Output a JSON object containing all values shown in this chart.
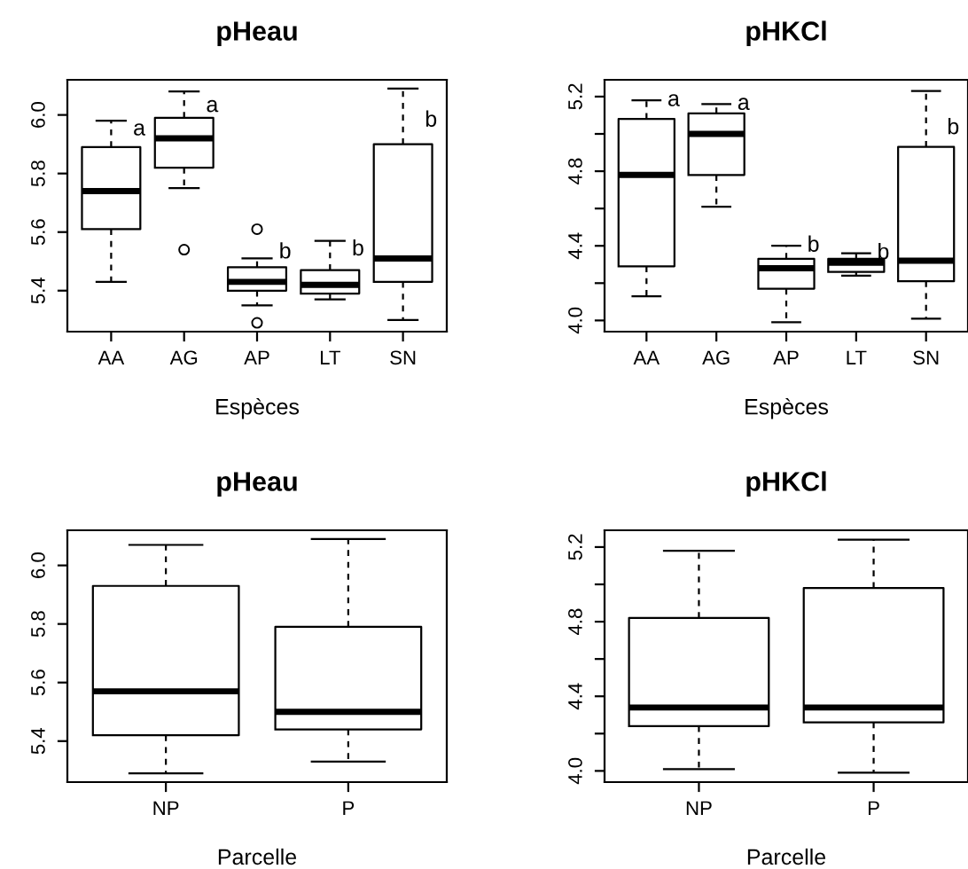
{
  "chart_data": [
    {
      "type": "box",
      "title": "pHeau",
      "xlabel": "Espèces",
      "categories": [
        "AA",
        "AG",
        "AP",
        "LT",
        "SN"
      ],
      "ylim": [
        5.26,
        6.12
      ],
      "yticks": [
        5.4,
        5.6,
        5.8,
        {
          "value": 6.0,
          "label": "6.0"
        }
      ],
      "grid": false,
      "boxes": [
        {
          "low": 5.43,
          "q1": 5.61,
          "median": 5.74,
          "q3": 5.89,
          "high": 5.98
        },
        {
          "low": 5.75,
          "q1": 5.82,
          "median": 5.92,
          "q3": 5.99,
          "high": 6.08,
          "outliers": [
            5.54
          ]
        },
        {
          "low": 5.35,
          "q1": 5.4,
          "median": 5.43,
          "q3": 5.48,
          "high": 5.51,
          "outliers": [
            5.61,
            5.29
          ]
        },
        {
          "low": 5.37,
          "q1": 5.39,
          "median": 5.42,
          "q3": 5.47,
          "high": 5.57
        },
        {
          "low": 5.3,
          "q1": 5.43,
          "median": 5.51,
          "q3": 5.9,
          "high": 6.09
        }
      ],
      "annotations": [
        {
          "text": "a",
          "x": "AA",
          "y": 5.95
        },
        {
          "text": "a",
          "x": "AG",
          "y": 6.03
        },
        {
          "text": "b",
          "x": "AP",
          "y": 5.53
        },
        {
          "text": "b",
          "x": "LT",
          "y": 5.54
        },
        {
          "text": "b",
          "x": "SN",
          "y": 5.98
        }
      ]
    },
    {
      "type": "box",
      "title": "pHKCl",
      "xlabel": "Espèces",
      "categories": [
        "AA",
        "AG",
        "AP",
        "LT",
        "SN"
      ],
      "ylim": [
        3.94,
        5.29
      ],
      "yticks": [
        {
          "value": 4.0,
          "label": "4.0"
        },
        {
          "value": 4.2,
          "label": null
        },
        4.4,
        {
          "value": 4.6,
          "label": null
        },
        4.8,
        {
          "value": 5.0,
          "label": null
        },
        5.2
      ],
      "grid": false,
      "boxes": [
        {
          "low": 4.13,
          "q1": 4.29,
          "median": 4.78,
          "q3": 5.08,
          "high": 5.18
        },
        {
          "low": 4.61,
          "q1": 4.78,
          "median": 5.0,
          "q3": 5.11,
          "high": 5.16
        },
        {
          "low": 3.99,
          "q1": 4.17,
          "median": 4.28,
          "q3": 4.33,
          "high": 4.4
        },
        {
          "low": 4.24,
          "q1": 4.26,
          "median": 4.31,
          "q3": 4.33,
          "high": 4.36
        },
        {
          "low": 4.01,
          "q1": 4.21,
          "median": 4.32,
          "q3": 4.93,
          "high": 5.23
        }
      ],
      "annotations": [
        {
          "text": "a",
          "x": "AA",
          "y": 5.18
        },
        {
          "text": "a",
          "x": "AG",
          "y": 5.16
        },
        {
          "text": "b",
          "x": "AP",
          "y": 4.4
        },
        {
          "text": "b",
          "x": "LT",
          "y": 4.36
        },
        {
          "text": "b",
          "x": "SN",
          "y": 5.03
        }
      ]
    },
    {
      "type": "box",
      "title": "pHeau",
      "xlabel": "Parcelle",
      "categories": [
        "NP",
        "P"
      ],
      "ylim": [
        5.26,
        6.12
      ],
      "yticks": [
        5.4,
        5.6,
        5.8,
        {
          "value": 6.0,
          "label": "6.0"
        }
      ],
      "grid": false,
      "boxes": [
        {
          "low": 5.29,
          "q1": 5.42,
          "median": 5.57,
          "q3": 5.93,
          "high": 6.07
        },
        {
          "low": 5.33,
          "q1": 5.44,
          "median": 5.5,
          "q3": 5.79,
          "high": 6.09
        }
      ]
    },
    {
      "type": "box",
      "title": "pHKCl",
      "xlabel": "Parcelle",
      "categories": [
        "NP",
        "P"
      ],
      "ylim": [
        3.94,
        5.29
      ],
      "yticks": [
        {
          "value": 4.0,
          "label": "4.0"
        },
        {
          "value": 4.2,
          "label": null
        },
        4.4,
        {
          "value": 4.6,
          "label": null
        },
        4.8,
        {
          "value": 5.0,
          "label": null
        },
        5.2
      ],
      "grid": false,
      "boxes": [
        {
          "low": 4.01,
          "q1": 4.24,
          "median": 4.34,
          "q3": 4.82,
          "high": 5.18
        },
        {
          "low": 3.99,
          "q1": 4.26,
          "median": 4.34,
          "q3": 4.98,
          "high": 5.24
        }
      ]
    }
  ]
}
